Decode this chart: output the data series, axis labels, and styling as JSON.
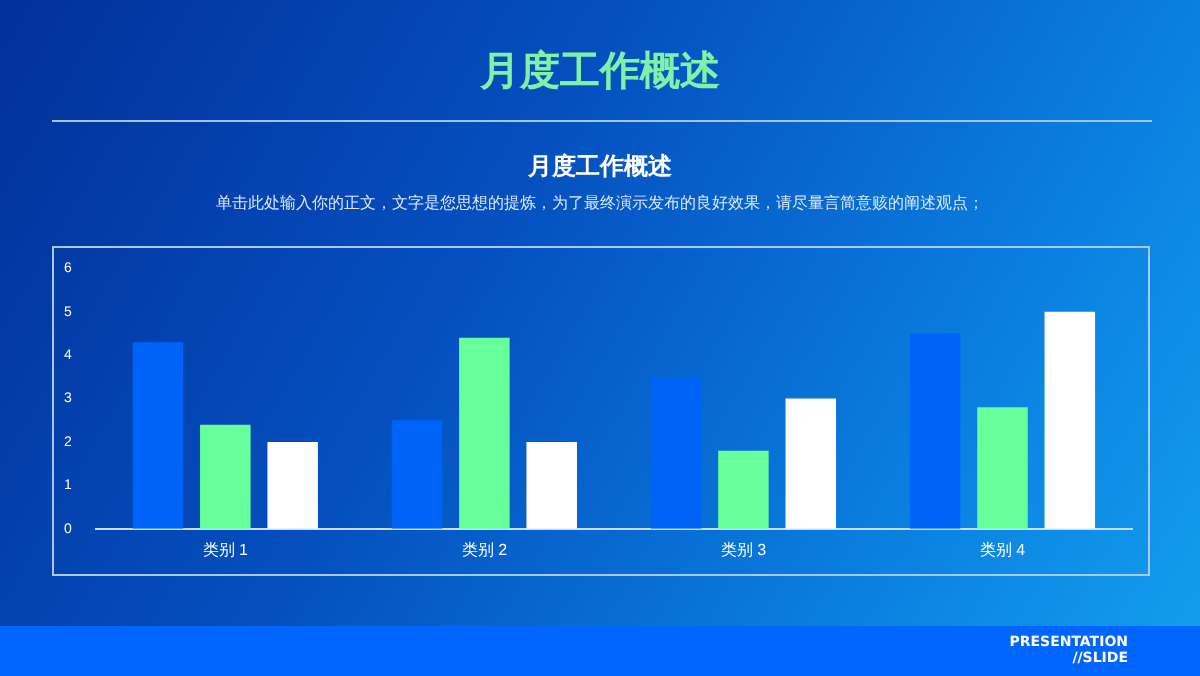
{
  "chart_data": {
    "type": "bar",
    "title": "月度工作概述",
    "subtitle": "单击此处输入你的正文，文字是您思想的提炼，为了最终演示发布的良好效果，请尽量言简意赅的阐述观点；",
    "annotations": [
      "月度工作概述",
      "PRESENTATION\n//SLIDE"
    ],
    "categories": [
      "类别 1",
      "类别 2",
      "类别 3",
      "类别 4"
    ],
    "series": [
      {
        "color": "#0063f7",
        "values": [
          4.3,
          2.5,
          3.5,
          4.5
        ]
      },
      {
        "color": "#66ff99",
        "values": [
          2.4,
          4.4,
          1.8,
          2.8
        ]
      },
      {
        "color": "#ffffff",
        "values": [
          2,
          2,
          3,
          5
        ]
      }
    ],
    "ylim": [
      0,
      6
    ],
    "yticks": [
      0,
      1,
      2,
      3,
      4,
      5,
      6
    ],
    "grid": false,
    "legend": false
  }
}
